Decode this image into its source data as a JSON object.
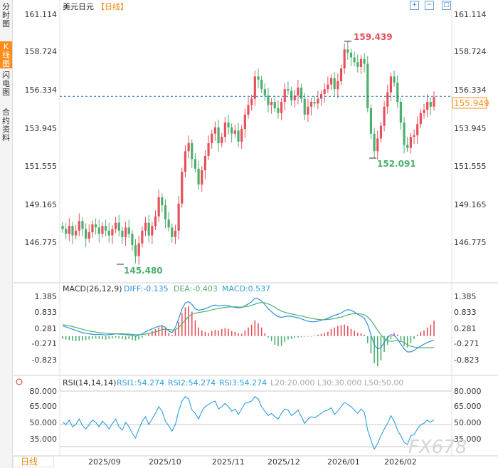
{
  "sidebar": {
    "tabs": [
      {
        "label": "分时图"
      },
      {
        "label": "K线图",
        "active": true
      },
      {
        "label": "闪电图"
      },
      {
        "label": "合约资料"
      }
    ]
  },
  "header": {
    "instrument": "美元日元",
    "period_tag": "【日线】",
    "toolbar_icons": [
      "zoom-in-icon",
      "zoom-out-icon",
      "fullscreen-icon"
    ]
  },
  "colors": {
    "up": "#e8505b",
    "down": "#4caf6e",
    "diff_line": "#2f8fe0",
    "dea_line": "#4caf6e",
    "rsi_line": "#2a9fe0",
    "current_price": "#ff8c1a",
    "grid": "#eeeeee",
    "dashed": "#1e73be"
  },
  "price_panel": {
    "y_ticks": [
      "161.114",
      "158.724",
      "156.334",
      "153.945",
      "151.555",
      "149.165",
      "146.775"
    ],
    "current_price": "155.949",
    "max_label": "159.439",
    "min_label": "145.480",
    "local_low_label": "152.091"
  },
  "macd_panel": {
    "title": "MACD(26,12,9)",
    "diff": "DIFF:-0.135",
    "dea": "DEA:-0.403",
    "macd": "MACD:0.537",
    "y_ticks": [
      "1.385",
      "0.833",
      "0.281",
      "-0.271",
      "-0.823"
    ]
  },
  "rsi_panel": {
    "title": "RSI(14,14,14)",
    "rsi1": "RSI1:54.274",
    "rsi2": "RSI2:54.274",
    "rsi3": "RSI3:54.274",
    "l20": "L20:20.000",
    "l30": "L30:30.000",
    "l50": "L50:50.00",
    "y_ticks": [
      "80.000",
      "65.000",
      "50.000",
      "35.000"
    ]
  },
  "x_axis": {
    "labels": [
      "2025/09",
      "2025/10",
      "2025/11",
      "2025/12",
      "2026/01",
      "2026/02"
    ]
  },
  "footer": {
    "period_button": "日线",
    "watermark": "FX678"
  },
  "chart_data": [
    {
      "type": "candlestick",
      "title": "美元日元【日线】",
      "ylim": [
        145.0,
        161.114
      ],
      "y_ticks": [
        161.114,
        158.724,
        156.334,
        153.945,
        151.555,
        149.165,
        146.775
      ],
      "x_labels": [
        "2025/09",
        "2025/10",
        "2025/11",
        "2025/12",
        "2026/01",
        "2026/02"
      ],
      "close": [
        147.6,
        147.3,
        147.8,
        147.2,
        147.5,
        148.1,
        147.6,
        147.0,
        147.4,
        147.9,
        147.7,
        147.3,
        147.8,
        147.5,
        147.2,
        147.6,
        148.0,
        147.5,
        147.1,
        147.7,
        147.3,
        146.6,
        145.9,
        146.7,
        147.5,
        148.0,
        147.2,
        147.8,
        148.4,
        149.6,
        149.1,
        148.2,
        147.7,
        147.1,
        147.5,
        149.2,
        151.2,
        152.5,
        153.0,
        152.0,
        151.4,
        150.4,
        151.3,
        152.2,
        153.0,
        153.6,
        154.0,
        153.0,
        153.4,
        154.3,
        154.0,
        153.6,
        153.8,
        153.1,
        153.9,
        154.8,
        155.4,
        155.8,
        157.2,
        157.0,
        156.4,
        156.0,
        155.4,
        155.6,
        155.2,
        154.9,
        155.6,
        156.4,
        156.3,
        155.7,
        156.0,
        156.5,
        155.8,
        154.8,
        155.3,
        155.6,
        155.5,
        155.8,
        156.1,
        156.4,
        156.7,
        157.1,
        156.4,
        156.9,
        157.7,
        158.9,
        158.7,
        158.4,
        158.1,
        157.8,
        158.3,
        158.0,
        155.2,
        153.6,
        152.5,
        153.3,
        154.1,
        155.3,
        156.2,
        157.2,
        156.8,
        155.6,
        154.3,
        152.9,
        152.7,
        153.4,
        153.5,
        154.2,
        154.9,
        155.1,
        155.6,
        155.3,
        155.9
      ],
      "high": 159.439,
      "low": 145.48,
      "annotations": [
        "159.439",
        "145.480",
        "152.091"
      ],
      "current_price": 155.949
    },
    {
      "type": "bar+line",
      "title": "MACD(26,12,9)",
      "ylim": [
        -1.1,
        1.6
      ],
      "y_ticks": [
        1.385,
        0.833,
        0.281,
        -0.271,
        -0.823
      ],
      "series": [
        {
          "name": "DIFF",
          "last": -0.135
        },
        {
          "name": "DEA",
          "last": -0.403
        },
        {
          "name": "MACD",
          "last": 0.537
        }
      ],
      "macd": [
        -0.1,
        -0.12,
        -0.14,
        -0.16,
        -0.18,
        -0.17,
        -0.16,
        -0.14,
        -0.12,
        -0.1,
        -0.09,
        -0.1,
        -0.11,
        -0.12,
        -0.1,
        -0.08,
        -0.06,
        -0.08,
        -0.1,
        -0.12,
        -0.1,
        -0.14,
        -0.16,
        -0.12,
        -0.06,
        0.02,
        0.1,
        0.18,
        0.24,
        0.3,
        0.36,
        0.28,
        0.1,
        0.04,
        0.2,
        0.5,
        0.8,
        1.0,
        1.05,
        0.85,
        0.55,
        0.3,
        0.2,
        0.15,
        0.1,
        0.18,
        0.22,
        0.2,
        0.25,
        0.28,
        0.25,
        0.18,
        0.15,
        0.1,
        0.08,
        0.2,
        0.3,
        0.4,
        0.55,
        0.45,
        0.3,
        0.1,
        -0.05,
        -0.18,
        -0.3,
        -0.35,
        -0.34,
        -0.2,
        -0.12,
        -0.1,
        -0.06,
        -0.05,
        -0.03,
        -0.02,
        -0.02,
        0.0,
        0.02,
        0.05,
        0.08,
        0.1,
        0.15,
        0.25,
        0.3,
        0.35,
        0.38,
        0.4,
        0.35,
        0.25,
        0.2,
        0.12,
        0.1,
        0.05,
        -0.25,
        -0.6,
        -0.95,
        -1.05,
        -0.85,
        -0.55,
        -0.3,
        -0.1,
        0.1,
        0.05,
        -0.15,
        -0.35,
        -0.4,
        -0.25,
        -0.1,
        0.05,
        0.15,
        0.2,
        0.3,
        0.4,
        0.537
      ],
      "diff": [
        0.35,
        0.32,
        0.28,
        0.24,
        0.2,
        0.16,
        0.12,
        0.1,
        0.08,
        0.06,
        0.05,
        0.06,
        0.05,
        0.04,
        0.05,
        0.06,
        0.08,
        0.07,
        0.06,
        0.05,
        0.04,
        0.02,
        0.0,
        0.03,
        0.08,
        0.15,
        0.2,
        0.25,
        0.3,
        0.34,
        0.36,
        0.3,
        0.18,
        0.12,
        0.3,
        0.6,
        0.95,
        1.15,
        1.2,
        1.1,
        0.95,
        0.9,
        0.92,
        0.95,
        1.0,
        1.05,
        1.08,
        1.05,
        1.06,
        1.08,
        1.06,
        1.02,
        1.0,
        0.98,
        1.0,
        1.05,
        1.12,
        1.2,
        1.32,
        1.3,
        1.22,
        1.1,
        0.95,
        0.85,
        0.75,
        0.68,
        0.65,
        0.68,
        0.7,
        0.68,
        0.66,
        0.64,
        0.6,
        0.56,
        0.52,
        0.5,
        0.5,
        0.52,
        0.55,
        0.58,
        0.62,
        0.68,
        0.72,
        0.76,
        0.8,
        0.88,
        0.92,
        0.9,
        0.84,
        0.76,
        0.7,
        0.62,
        0.4,
        0.05,
        -0.3,
        -0.45,
        -0.4,
        -0.22,
        -0.05,
        0.05,
        0.02,
        -0.1,
        -0.28,
        -0.45,
        -0.55,
        -0.55,
        -0.5,
        -0.42,
        -0.35,
        -0.28,
        -0.22,
        -0.18,
        -0.135
      ],
      "dea": [
        0.4,
        0.38,
        0.36,
        0.33,
        0.3,
        0.27,
        0.24,
        0.21,
        0.18,
        0.16,
        0.14,
        0.12,
        0.11,
        0.1,
        0.09,
        0.08,
        0.08,
        0.08,
        0.08,
        0.07,
        0.07,
        0.06,
        0.05,
        0.05,
        0.05,
        0.07,
        0.09,
        0.12,
        0.15,
        0.19,
        0.23,
        0.24,
        0.23,
        0.21,
        0.22,
        0.3,
        0.42,
        0.56,
        0.68,
        0.76,
        0.8,
        0.82,
        0.84,
        0.86,
        0.88,
        0.91,
        0.94,
        0.96,
        0.98,
        1.0,
        1.01,
        1.02,
        1.02,
        1.01,
        1.01,
        1.02,
        1.04,
        1.07,
        1.11,
        1.15,
        1.17,
        1.16,
        1.12,
        1.07,
        1.0,
        0.93,
        0.87,
        0.83,
        0.8,
        0.77,
        0.75,
        0.72,
        0.7,
        0.67,
        0.64,
        0.62,
        0.6,
        0.58,
        0.57,
        0.57,
        0.58,
        0.59,
        0.61,
        0.64,
        0.66,
        0.7,
        0.74,
        0.77,
        0.78,
        0.78,
        0.77,
        0.74,
        0.67,
        0.55,
        0.38,
        0.2,
        0.05,
        -0.08,
        -0.16,
        -0.18,
        -0.17,
        -0.16,
        -0.18,
        -0.23,
        -0.3,
        -0.35,
        -0.38,
        -0.4,
        -0.41,
        -0.41,
        -0.41,
        -0.4,
        -0.403
      ]
    },
    {
      "type": "line",
      "title": "RSI(14,14,14)",
      "ylim": [
        20,
        82
      ],
      "y_ticks": [
        80.0,
        65.0,
        50.0,
        35.0
      ],
      "reference_lines": [
        20,
        30,
        50,
        80
      ],
      "series": [
        {
          "name": "RSI1",
          "last": 54.274
        },
        {
          "name": "RSI2",
          "last": 54.274
        },
        {
          "name": "RSI3",
          "last": 54.274
        }
      ],
      "rsi": [
        52,
        50,
        54,
        48,
        50,
        55,
        49,
        46,
        50,
        54,
        52,
        48,
        53,
        50,
        46,
        51,
        55,
        48,
        45,
        52,
        48,
        42,
        38,
        46,
        53,
        57,
        50,
        55,
        60,
        66,
        62,
        53,
        49,
        44,
        50,
        62,
        71,
        75,
        73,
        63,
        60,
        55,
        62,
        66,
        68,
        70,
        71,
        64,
        66,
        69,
        66,
        62,
        64,
        59,
        64,
        69,
        70,
        71,
        75,
        73,
        66,
        62,
        58,
        60,
        57,
        55,
        60,
        64,
        63,
        58,
        60,
        63,
        57,
        51,
        55,
        57,
        56,
        58,
        60,
        62,
        63,
        65,
        59,
        62,
        66,
        70,
        68,
        66,
        63,
        60,
        64,
        61,
        45,
        36,
        28,
        33,
        40,
        46,
        51,
        58,
        53,
        45,
        40,
        34,
        32,
        40,
        41,
        46,
        50,
        51,
        54,
        52,
        54.274
      ]
    }
  ]
}
